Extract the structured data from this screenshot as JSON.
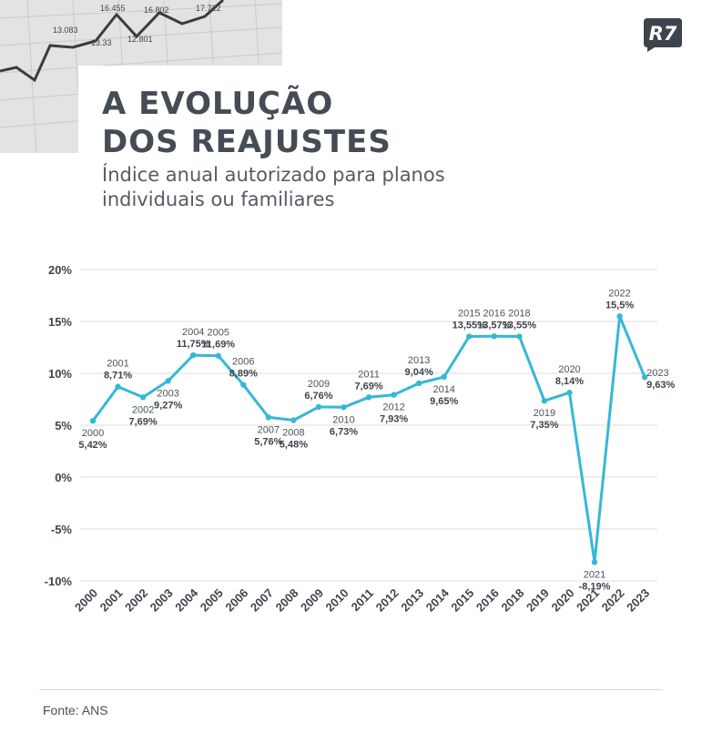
{
  "title": [
    "A EVOLUÇÃO",
    "DOS REAJUSTES"
  ],
  "subtitle": [
    "Índice anual autorizado para planos",
    "individuais ou familiares"
  ],
  "logo_text": "R7",
  "source": "Fonte: ANS",
  "colors": {
    "line": "#35b8d6",
    "text": "#4a5058",
    "grid": "#dcdcdc",
    "logo": "#3d444d"
  },
  "background_photo_numbers": [
    "13.083",
    "16.455",
    "16.802",
    "12.801",
    "17.722",
    "13.33"
  ],
  "chart_data": {
    "type": "line",
    "title": "",
    "xlabel": "",
    "ylabel": "",
    "ylim": [
      -10,
      20
    ],
    "yticks": [
      -10,
      -5,
      0,
      5,
      10,
      15,
      20
    ],
    "ytick_labels": [
      "-10%",
      "-5%",
      "0%",
      "5%",
      "10%",
      "15%",
      "20%"
    ],
    "grid": true,
    "categories": [
      "2000",
      "2001",
      "2002",
      "2003",
      "2004",
      "2005",
      "2006",
      "2007",
      "2008",
      "2009",
      "2010",
      "2011",
      "2012",
      "2013",
      "2014",
      "2015",
      "2016",
      "2018",
      "2019",
      "2020",
      "2021",
      "2022",
      "2023"
    ],
    "values": [
      5.42,
      8.71,
      7.69,
      9.27,
      11.75,
      11.69,
      8.89,
      5.76,
      5.48,
      6.76,
      6.73,
      7.69,
      7.93,
      9.04,
      9.65,
      13.55,
      13.57,
      13.55,
      7.35,
      8.14,
      -8.19,
      15.5,
      9.63
    ],
    "value_labels": [
      "5,42%",
      "8,71%",
      "7,69%",
      "9,27%",
      "11,75%",
      "11,69%",
      "8,89%",
      "5,76%",
      "5,48%",
      "6,76%",
      "6,73%",
      "7,69%",
      "7,93%",
      "9,04%",
      "9,65%",
      "13,55%",
      "13,57%",
      "13,55%",
      "7,35%",
      "8,14%",
      "-8,19%",
      "15,5%",
      "9,63%"
    ],
    "label_placement": [
      "below",
      "above",
      "below",
      "below",
      "above",
      "above",
      "above",
      "below",
      "below",
      "above",
      "below",
      "above",
      "below",
      "above",
      "below",
      "above",
      "above",
      "above",
      "below",
      "above",
      "below",
      "above",
      "right"
    ]
  }
}
